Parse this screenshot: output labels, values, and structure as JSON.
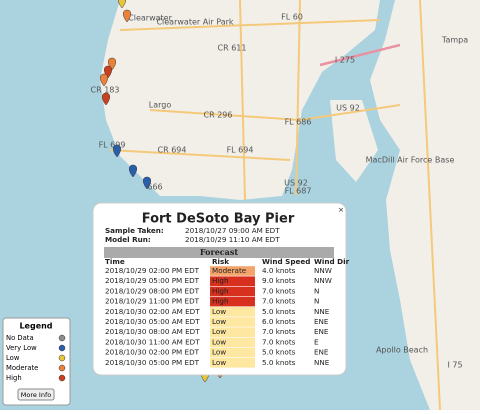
{
  "map_labels": [
    "Clearwater",
    "Clearwater Air Park",
    "CR 611",
    "FL 60",
    "Tampa",
    "Largo",
    "I 275",
    "CR 183",
    "CR 296",
    "US 92",
    "FL 686",
    "MacDill Air Force Base",
    "FL 699",
    "CR 694",
    "FL 694",
    "US 92",
    "FL 687",
    "666",
    "Apollo Beach",
    "I 75"
  ],
  "popup": {
    "close": "×",
    "title": "Fort DeSoto Bay Pier",
    "sample_taken": {
      "label": "Sample Taken:",
      "value": "2018/10/27 09:00 AM EDT"
    },
    "model_run": {
      "label": "Model Run:",
      "value": "2018/10/29 11:10 AM EDT"
    },
    "forecast": {
      "heading": "Forecast",
      "columns": [
        "Time",
        "Risk",
        "Wind Speed",
        "Wind Dir"
      ],
      "risk_colors": {
        "Moderate": "#f4a46a",
        "High": "#d7301f",
        "Low": "#fde7a1"
      },
      "rows": [
        [
          "2018/10/29 02:00 PM EDT",
          "Moderate",
          "4.0 knots",
          "NNW"
        ],
        [
          "2018/10/29 05:00 PM EDT",
          "High",
          "9.0 knots",
          "NNW"
        ],
        [
          "2018/10/29 08:00 PM EDT",
          "High",
          "7.0 knots",
          "N"
        ],
        [
          "2018/10/29 11:00 PM EDT",
          "High",
          "7.0 knots",
          "N"
        ],
        [
          "2018/10/30 02:00 AM EDT",
          "Low",
          "5.0 knots",
          "NNE"
        ],
        [
          "2018/10/30 05:00 AM EDT",
          "Low",
          "6.0 knots",
          "ENE"
        ],
        [
          "2018/10/30 08:00 AM EDT",
          "Low",
          "7.0 knots",
          "ENE"
        ],
        [
          "2018/10/30 11:00 AM EDT",
          "Low",
          "7.0 knots",
          "E"
        ],
        [
          "2018/10/30 02:00 PM EDT",
          "Low",
          "5.0 knots",
          "ENE"
        ],
        [
          "2018/10/30 05:00 PM EDT",
          "Low",
          "5.0 knots",
          "NNE"
        ]
      ]
    }
  },
  "legend": {
    "title": "Legend",
    "button": "More Info",
    "items": [
      {
        "label": "No Data",
        "color": "#8c8c8c"
      },
      {
        "label": "Very Low",
        "color": "#2b5ea8"
      },
      {
        "label": "Low",
        "color": "#e8c53a"
      },
      {
        "label": "Moderate",
        "color": "#e8813a"
      },
      {
        "label": "High",
        "color": "#c8401f"
      }
    ]
  }
}
